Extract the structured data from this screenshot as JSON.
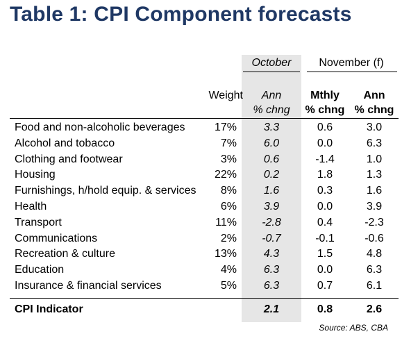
{
  "title": "Table 1: CPI Component forecasts",
  "headers": {
    "october": "October",
    "november": "November (f)",
    "weight": "Weight",
    "oct_ann_line1": "Ann",
    "oct_ann_line2": "% chng",
    "mthly_line1": "Mthly",
    "mthly_line2": "% chng",
    "nov_ann_line1": "Ann",
    "nov_ann_line2": "% chng"
  },
  "rows": [
    {
      "name": "Food and non-alcoholic beverages",
      "weight": "17%",
      "oct_ann": "3.3",
      "nov_mthly": "0.6",
      "nov_ann": "3.0"
    },
    {
      "name": "Alcohol and tobacco",
      "weight": "7%",
      "oct_ann": "6.0",
      "nov_mthly": "0.0",
      "nov_ann": "6.3"
    },
    {
      "name": "Clothing and footwear",
      "weight": "3%",
      "oct_ann": "0.6",
      "nov_mthly": "-1.4",
      "nov_ann": "1.0"
    },
    {
      "name": "Housing",
      "weight": "22%",
      "oct_ann": "0.2",
      "nov_mthly": "1.8",
      "nov_ann": "1.3"
    },
    {
      "name": "Furnishings, h/hold equip. & services",
      "weight": "8%",
      "oct_ann": "1.6",
      "nov_mthly": "0.3",
      "nov_ann": "1.6"
    },
    {
      "name": "Health",
      "weight": "6%",
      "oct_ann": "3.9",
      "nov_mthly": "0.0",
      "nov_ann": "3.9"
    },
    {
      "name": "Transport",
      "weight": "11%",
      "oct_ann": "-2.8",
      "nov_mthly": "0.4",
      "nov_ann": "-2.3"
    },
    {
      "name": "Communications",
      "weight": "2%",
      "oct_ann": "-0.7",
      "nov_mthly": "-0.1",
      "nov_ann": "-0.6"
    },
    {
      "name": "Recreation & culture",
      "weight": "13%",
      "oct_ann": "4.3",
      "nov_mthly": "1.5",
      "nov_ann": "4.8"
    },
    {
      "name": "Education",
      "weight": "4%",
      "oct_ann": "6.3",
      "nov_mthly": "0.0",
      "nov_ann": "6.3"
    },
    {
      "name": "Insurance & financial services",
      "weight": "5%",
      "oct_ann": "6.3",
      "nov_mthly": "0.7",
      "nov_ann": "6.1"
    }
  ],
  "total": {
    "name": "CPI Indicator",
    "oct_ann": "2.1",
    "nov_mthly": "0.8",
    "nov_ann": "2.6"
  },
  "source": "Source: ABS, CBA",
  "colors": {
    "title": "#1f3864",
    "october_band": "#e6e6e6"
  }
}
